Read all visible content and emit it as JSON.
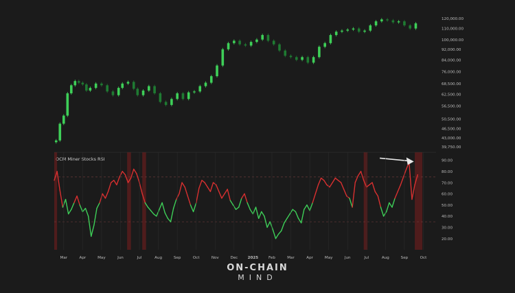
{
  "chart_data": [
    {
      "type": "line",
      "style": "candlestick",
      "title": "",
      "ylabel": "",
      "y_scale": "log",
      "ylim": [
        39750,
        122000
      ],
      "y_ticks": [
        "120,000.00",
        "110,000.00",
        "100,000.00",
        "92,000.00",
        "84,000.00",
        "76,000.00",
        "68,500.00",
        "62,500.00",
        "56,500.00",
        "50,500.00",
        "46,500.00",
        "43,000.00",
        "39,750.00"
      ],
      "y_tick_values": [
        120000,
        110000,
        100000,
        92000,
        84000,
        76000,
        68500,
        62500,
        56500,
        50500,
        46500,
        43000,
        39750
      ],
      "up_color": "#3ecf58",
      "down_color": "#1f7a32",
      "x_range_months": [
        0,
        19.7
      ],
      "x": [
        0.1,
        0.3,
        0.5,
        0.7,
        0.9,
        1.1,
        1.3,
        1.5,
        1.7,
        1.9,
        2.2,
        2.5,
        2.8,
        3.1,
        3.4,
        3.6,
        3.9,
        4.2,
        4.4,
        4.7,
        5.0,
        5.3,
        5.6,
        5.9,
        6.2,
        6.5,
        6.8,
        7.1,
        7.4,
        7.7,
        8.0,
        8.3,
        8.6,
        8.9,
        9.2,
        9.5,
        9.8,
        10.1,
        10.4,
        10.7,
        11.0,
        11.3,
        11.6,
        11.9,
        12.2,
        12.5,
        12.8,
        13.1,
        13.4,
        13.7,
        14.0,
        14.3,
        14.6,
        14.9,
        15.2,
        15.5,
        15.8,
        16.1,
        16.4,
        16.7,
        17.0,
        17.3,
        17.6,
        17.9,
        18.2,
        18.5,
        18.8,
        19.1
      ],
      "y": [
        42000,
        48500,
        52000,
        63000,
        67500,
        70000,
        69000,
        68000,
        64500,
        66000,
        68500,
        67500,
        64000,
        62000,
        66000,
        68500,
        69500,
        65500,
        62000,
        64500,
        67000,
        63000,
        58500,
        57000,
        60000,
        63000,
        60000,
        63500,
        64000,
        67000,
        69000,
        73000,
        80000,
        92000,
        97000,
        99000,
        96000,
        95000,
        98000,
        100000,
        104000,
        99000,
        96000,
        91000,
        87000,
        86000,
        84000,
        86000,
        82000,
        86000,
        94000,
        97000,
        104000,
        107000,
        108000,
        109000,
        110000,
        107000,
        108000,
        113000,
        117000,
        119000,
        118000,
        116000,
        117000,
        113000,
        110000,
        115000
      ]
    },
    {
      "type": "line",
      "title": "OCM Miner Stocks RSI",
      "ylabel": "",
      "ylim": [
        10,
        97
      ],
      "y_ticks": [
        "90.00",
        "80.00",
        "70.00",
        "60.00",
        "50.00",
        "40.00",
        "30.00",
        "20.00"
      ],
      "y_tick_values": [
        90,
        80,
        70,
        60,
        50,
        40,
        30,
        20
      ],
      "reference_lines": [
        75,
        35
      ],
      "overbought_color": "#d93030",
      "oversold_color": "#3ecf58",
      "threshold": 53,
      "x_axis_labels": [
        "Mar",
        "Apr",
        "May",
        "Jun",
        "Jul",
        "Aug",
        "Sep",
        "Oct",
        "Nov",
        "Dec",
        "2025",
        "Feb",
        "Mar",
        "Apr",
        "May",
        "Jun",
        "Jul",
        "Aug",
        "Sep",
        "Oct"
      ],
      "x_axis_label_positions": [
        0.5,
        1.5,
        2.5,
        3.5,
        4.5,
        5.5,
        6.5,
        7.5,
        8.5,
        9.5,
        10.5,
        11.5,
        12.5,
        13.5,
        14.5,
        15.5,
        16.5,
        17.5,
        18.5,
        19.5
      ],
      "highlight_bands": [
        [
          0,
          0.15
        ],
        [
          3.85,
          4.05
        ],
        [
          4.65,
          4.85
        ],
        [
          16.35,
          16.55
        ],
        [
          19.05,
          19.45
        ]
      ],
      "annotation_arrow": {
        "from": 17.2,
        "to": 19.0,
        "value": 90
      },
      "x": [
        0.0,
        0.15,
        0.3,
        0.45,
        0.6,
        0.75,
        0.9,
        1.05,
        1.2,
        1.35,
        1.5,
        1.65,
        1.8,
        1.95,
        2.1,
        2.25,
        2.4,
        2.55,
        2.7,
        2.85,
        3.0,
        3.15,
        3.3,
        3.45,
        3.6,
        3.75,
        3.9,
        4.05,
        4.2,
        4.35,
        4.5,
        4.65,
        4.8,
        4.95,
        5.1,
        5.25,
        5.4,
        5.55,
        5.7,
        5.85,
        6.0,
        6.15,
        6.3,
        6.45,
        6.6,
        6.75,
        6.9,
        7.05,
        7.2,
        7.35,
        7.5,
        7.65,
        7.8,
        7.95,
        8.1,
        8.25,
        8.4,
        8.55,
        8.7,
        8.85,
        9.0,
        9.15,
        9.3,
        9.45,
        9.6,
        9.75,
        9.9,
        10.05,
        10.2,
        10.35,
        10.5,
        10.65,
        10.8,
        10.95,
        11.1,
        11.25,
        11.4,
        11.55,
        11.7,
        11.85,
        12.0,
        12.15,
        12.3,
        12.45,
        12.6,
        12.75,
        12.9,
        13.05,
        13.2,
        13.35,
        13.5,
        13.65,
        13.8,
        13.95,
        14.1,
        14.25,
        14.4,
        14.55,
        14.7,
        14.85,
        15.0,
        15.15,
        15.3,
        15.45,
        15.6,
        15.75,
        15.9,
        16.05,
        16.2,
        16.35,
        16.5,
        16.65,
        16.8,
        16.95,
        17.1,
        17.25,
        17.4,
        17.55,
        17.7,
        17.85,
        18.0,
        18.15,
        18.3,
        18.45,
        18.6,
        18.75,
        18.9,
        19.05,
        19.2
      ],
      "y": [
        72,
        80,
        63,
        48,
        55,
        42,
        46,
        52,
        58,
        50,
        44,
        47,
        40,
        22,
        32,
        47,
        52,
        60,
        56,
        62,
        70,
        72,
        68,
        75,
        80,
        77,
        70,
        74,
        82,
        78,
        70,
        60,
        52,
        48,
        45,
        42,
        40,
        46,
        52,
        43,
        38,
        35,
        47,
        55,
        60,
        70,
        66,
        58,
        50,
        44,
        52,
        65,
        72,
        70,
        66,
        62,
        70,
        68,
        62,
        56,
        60,
        64,
        54,
        50,
        46,
        48,
        56,
        60,
        52,
        46,
        42,
        48,
        38,
        44,
        40,
        30,
        35,
        28,
        20,
        24,
        27,
        34,
        38,
        42,
        46,
        44,
        38,
        34,
        46,
        50,
        45,
        52,
        60,
        68,
        74,
        72,
        68,
        66,
        70,
        74,
        72,
        70,
        64,
        58,
        56,
        48,
        70,
        76,
        80,
        72,
        66,
        68,
        70,
        62,
        58,
        48,
        40,
        44,
        52,
        48,
        56,
        62,
        68,
        75,
        82,
        88,
        55,
        68,
        77
      ]
    }
  ],
  "brand": {
    "line1": "ON-CHAIN",
    "line2": "MIND"
  }
}
